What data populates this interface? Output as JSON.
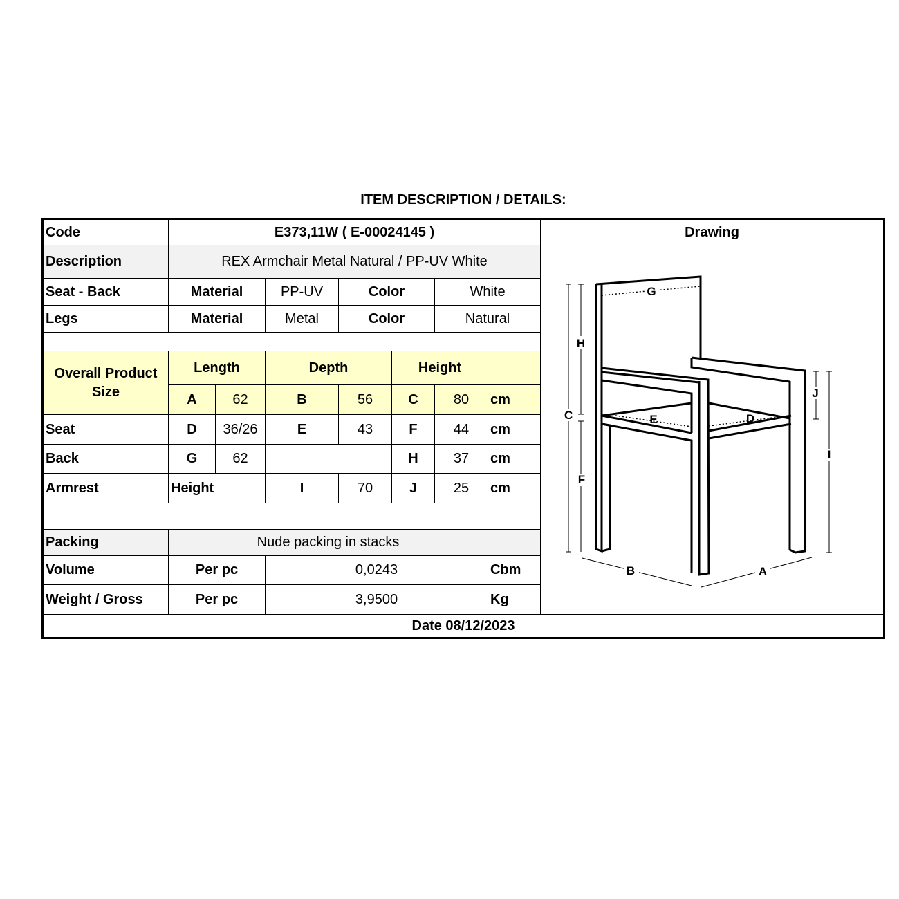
{
  "title": "ITEM DESCRIPTION / DETAILS:",
  "code": {
    "label": "Code",
    "value": "E373,11W ( E-00024145 )"
  },
  "drawing_header": "Drawing",
  "description": {
    "label": "Description",
    "value": "REX Armchair Metal Natural / PP-UV White"
  },
  "seat_back": {
    "label": "Seat - Back",
    "material_label": "Material",
    "material": "PP-UV",
    "color_label": "Color",
    "color": "White"
  },
  "legs": {
    "label": "Legs",
    "material_label": "Material",
    "material": "Metal",
    "color_label": "Color",
    "color": "Natural"
  },
  "overall": {
    "label": "Overall Product Size",
    "length_label": "Length",
    "depth_label": "Depth",
    "height_label": "Height",
    "a": "A",
    "a_val": "62",
    "b": "B",
    "b_val": "56",
    "c": "C",
    "c_val": "80",
    "unit": "cm"
  },
  "seat": {
    "label": "Seat",
    "d": "D",
    "d_val": "36/26",
    "e": "E",
    "e_val": "43",
    "f": "F",
    "f_val": "44",
    "unit": "cm"
  },
  "back": {
    "label": "Back",
    "g": "G",
    "g_val": "62",
    "h": "H",
    "h_val": "37",
    "unit": "cm"
  },
  "armrest": {
    "label": "Armrest",
    "height_label": "Height",
    "i": "I",
    "i_val": "70",
    "j": "J",
    "j_val": "25",
    "unit": "cm"
  },
  "packing": {
    "label": "Packing",
    "value": "Nude packing in stacks"
  },
  "volume": {
    "label": "Volume",
    "per": "Per pc",
    "value": "0,0243",
    "unit": "Cbm"
  },
  "weight": {
    "label": "Weight / Gross",
    "per": "Per pc",
    "value": "3,9500",
    "unit": "Kg"
  },
  "date": "Date 08/12/2023",
  "drawing": {
    "labels": {
      "g": "G",
      "h": "H",
      "c": "C",
      "f": "F",
      "e": "E",
      "d": "D",
      "j": "J",
      "i": "I",
      "b": "B",
      "a": "A"
    }
  },
  "colors": {
    "highlight": "#ffffcc",
    "gray_cell": "#f2f2f2"
  }
}
